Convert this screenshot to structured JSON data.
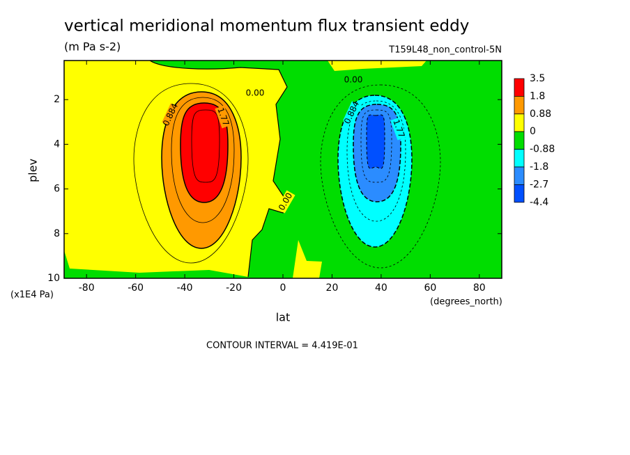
{
  "chart_data": {
    "type": "contour",
    "title": "vertical meridional momentum flux transient eddy",
    "subtitle": "(m Pa s-2)",
    "dataset": "T159L48_non_control-5N",
    "x_label": "lat",
    "x_units": "(degrees_north)",
    "y_label": "plev",
    "y_units": "(x1E4 Pa)",
    "note": "CONTOUR INTERVAL = 4.419E-01",
    "xlim": [
      -89.14,
      89.14
    ],
    "xticks": [
      -80,
      -60,
      -40,
      -20,
      0,
      20,
      40,
      60,
      80
    ],
    "ylim": [
      10,
      0.25
    ],
    "yticks": [
      2,
      4,
      6,
      8,
      10
    ],
    "colorbar": {
      "levels": [
        3.5,
        1.8,
        0.88,
        0,
        -0.88,
        -1.8,
        -2.7,
        -4.4
      ],
      "colors": [
        "#ff0000",
        "#ff9900",
        "#ffff00",
        "#00dd00",
        "#00ffff",
        "#2b8cff",
        "#0050ff"
      ]
    },
    "contour_labels": [
      "0.00",
      "0.00",
      "0.00",
      "0.884",
      "1.77",
      "0.884",
      "1.77"
    ]
  }
}
